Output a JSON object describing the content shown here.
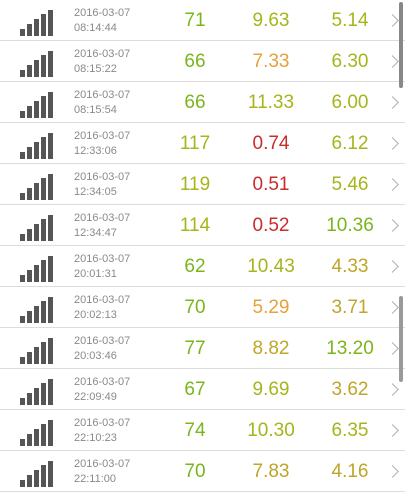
{
  "colors": {
    "green": "#7ab51d",
    "yellow_green": "#a6b51b",
    "olive": "#bfa528",
    "orange": "#e8a03b",
    "red": "#c82d2d",
    "gray_text": "#8a8a8a",
    "icon": "#555555"
  },
  "icons": {
    "signal": "signal-bars-icon",
    "chevron": "chevron-right-icon"
  },
  "results": [
    {
      "date": "2016-03-07",
      "time": "08:14:44",
      "ping": "71",
      "download": "9.63",
      "upload": "5.14",
      "ping_color": "#7ab51d",
      "download_color": "#a6b51b",
      "upload_color": "#a6b51b"
    },
    {
      "date": "2016-03-07",
      "time": "08:15:22",
      "ping": "66",
      "download": "7.33",
      "upload": "6.30",
      "ping_color": "#7ab51d",
      "download_color": "#e8a03b",
      "upload_color": "#a6b51b"
    },
    {
      "date": "2016-03-07",
      "time": "08:15:54",
      "ping": "66",
      "download": "11.33",
      "upload": "6.00",
      "ping_color": "#7ab51d",
      "download_color": "#a6b51b",
      "upload_color": "#a6b51b"
    },
    {
      "date": "2016-03-07",
      "time": "12:33:06",
      "ping": "117",
      "download": "0.74",
      "upload": "6.12",
      "ping_color": "#a6b51b",
      "download_color": "#c82d2d",
      "upload_color": "#a6b51b"
    },
    {
      "date": "2016-03-07",
      "time": "12:34:05",
      "ping": "119",
      "download": "0.51",
      "upload": "5.46",
      "ping_color": "#a6b51b",
      "download_color": "#c82d2d",
      "upload_color": "#a6b51b"
    },
    {
      "date": "2016-03-07",
      "time": "12:34:47",
      "ping": "114",
      "download": "0.52",
      "upload": "10.36",
      "ping_color": "#a6b51b",
      "download_color": "#c82d2d",
      "upload_color": "#7ab51d"
    },
    {
      "date": "2016-03-07",
      "time": "20:01:31",
      "ping": "62",
      "download": "10.43",
      "upload": "4.33",
      "ping_color": "#7ab51d",
      "download_color": "#a6b51b",
      "upload_color": "#bfa528"
    },
    {
      "date": "2016-03-07",
      "time": "20:02:13",
      "ping": "70",
      "download": "5.29",
      "upload": "3.71",
      "ping_color": "#7ab51d",
      "download_color": "#e8a03b",
      "upload_color": "#bfa528"
    },
    {
      "date": "2016-03-07",
      "time": "20:03:46",
      "ping": "77",
      "download": "8.82",
      "upload": "13.20",
      "ping_color": "#7ab51d",
      "download_color": "#bfa528",
      "upload_color": "#7ab51d"
    },
    {
      "date": "2016-03-07",
      "time": "22:09:49",
      "ping": "67",
      "download": "9.69",
      "upload": "3.62",
      "ping_color": "#7ab51d",
      "download_color": "#a6b51b",
      "upload_color": "#bfa528"
    },
    {
      "date": "2016-03-07",
      "time": "22:10:23",
      "ping": "74",
      "download": "10.30",
      "upload": "6.35",
      "ping_color": "#7ab51d",
      "download_color": "#a6b51b",
      "upload_color": "#a6b51b"
    },
    {
      "date": "2016-03-07",
      "time": "22:11:00",
      "ping": "70",
      "download": "7.83",
      "upload": "4.16",
      "ping_color": "#7ab51d",
      "download_color": "#bfa528",
      "upload_color": "#bfa528"
    }
  ]
}
